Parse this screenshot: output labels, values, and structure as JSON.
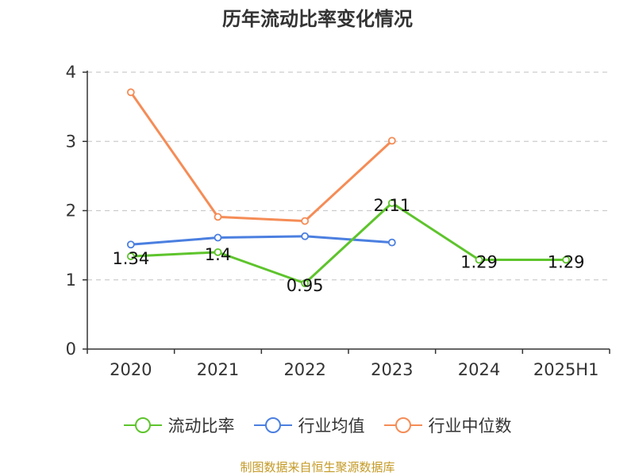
{
  "title": "历年流动比率变化情况",
  "source": "制图数据来自恒生聚源数据库",
  "chart_data": {
    "type": "line",
    "categories": [
      "2020",
      "2021",
      "2022",
      "2023",
      "2024",
      "2025H1"
    ],
    "ylim": [
      0,
      4
    ],
    "yticks": [
      0,
      1,
      2,
      3,
      4
    ],
    "grid": true,
    "legend_position": "bottom",
    "series": [
      {
        "name": "流动比率",
        "color": "#5ec42c",
        "values": [
          1.34,
          1.4,
          0.95,
          2.11,
          1.29,
          1.29
        ],
        "show_labels": true
      },
      {
        "name": "行业均值",
        "color": "#4b7fe0",
        "values": [
          1.51,
          1.61,
          1.63,
          1.54,
          null,
          null
        ],
        "show_labels": false
      },
      {
        "name": "行业中位数",
        "color": "#f58c56",
        "values": [
          3.71,
          1.91,
          1.85,
          3.01,
          null,
          null
        ],
        "show_labels": false
      }
    ]
  }
}
